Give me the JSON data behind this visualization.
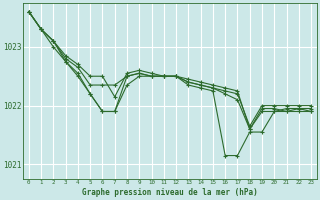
{
  "background_color": "#cce8e8",
  "grid_color": "#ffffff",
  "line_color": "#2d6b2d",
  "title": "Graphe pression niveau de la mer (hPa)",
  "xlabel_ticks": [
    0,
    1,
    2,
    3,
    4,
    5,
    6,
    7,
    8,
    9,
    10,
    11,
    12,
    13,
    14,
    15,
    16,
    17,
    18,
    19,
    20,
    21,
    22,
    23
  ],
  "ylim": [
    1020.75,
    1023.75
  ],
  "yticks": [
    1021,
    1022,
    1023
  ],
  "figsize": [
    3.2,
    2.0
  ],
  "dpi": 100,
  "lines": [
    {
      "x": [
        0,
        1,
        2,
        3,
        4,
        5,
        6,
        7,
        8,
        9,
        10,
        11,
        12,
        13,
        14,
        15,
        16,
        17,
        18,
        19,
        20,
        21,
        22,
        23
      ],
      "y": [
        1023.6,
        1023.3,
        1023.1,
        1022.8,
        1022.65,
        1022.35,
        1022.35,
        1022.35,
        1022.5,
        1022.55,
        1022.5,
        1022.5,
        1022.5,
        1022.45,
        1022.4,
        1022.35,
        1022.3,
        1022.25,
        1021.6,
        1021.9,
        1021.9,
        1021.95,
        1021.95,
        1021.9
      ]
    },
    {
      "x": [
        0,
        1,
        2,
        3,
        4,
        5,
        6,
        7,
        8,
        9,
        10,
        11,
        12,
        13,
        14,
        15,
        16,
        17,
        18,
        19,
        20,
        21,
        22,
        23
      ],
      "y": [
        1023.6,
        1023.3,
        1023.1,
        1022.85,
        1022.7,
        1022.5,
        1022.5,
        1022.15,
        1022.55,
        1022.6,
        1022.55,
        1022.5,
        1022.5,
        1022.4,
        1022.35,
        1022.3,
        1022.25,
        1022.2,
        1021.65,
        1022.0,
        1022.0,
        1022.0,
        1022.0,
        1022.0
      ]
    },
    {
      "x": [
        0,
        1,
        2,
        3,
        4,
        5,
        6,
        7,
        8,
        9,
        10,
        11,
        12,
        13,
        14,
        15,
        16,
        17,
        18,
        19,
        20,
        21,
        22,
        23
      ],
      "y": [
        1023.6,
        1023.3,
        1023.1,
        1022.75,
        1022.55,
        1022.2,
        1021.9,
        1021.9,
        1022.5,
        1022.55,
        1022.5,
        1022.5,
        1022.5,
        1022.4,
        1022.35,
        1022.3,
        1022.2,
        1022.1,
        1021.6,
        1021.95,
        1021.95,
        1021.9,
        1021.9,
        1021.9
      ]
    },
    {
      "x": [
        0,
        1,
        2,
        3,
        4,
        5,
        6,
        7,
        8,
        9,
        10,
        11,
        12,
        13,
        14,
        15,
        16,
        17,
        18,
        19,
        20,
        21,
        22,
        23
      ],
      "y": [
        1023.6,
        1023.3,
        1023.0,
        1022.75,
        1022.5,
        1022.2,
        1021.9,
        1021.9,
        1022.35,
        1022.5,
        1022.5,
        1022.5,
        1022.5,
        1022.35,
        1022.3,
        1022.25,
        1021.15,
        1021.15,
        1021.55,
        1021.55,
        1021.9,
        1021.9,
        1021.95,
        1021.95
      ]
    }
  ]
}
